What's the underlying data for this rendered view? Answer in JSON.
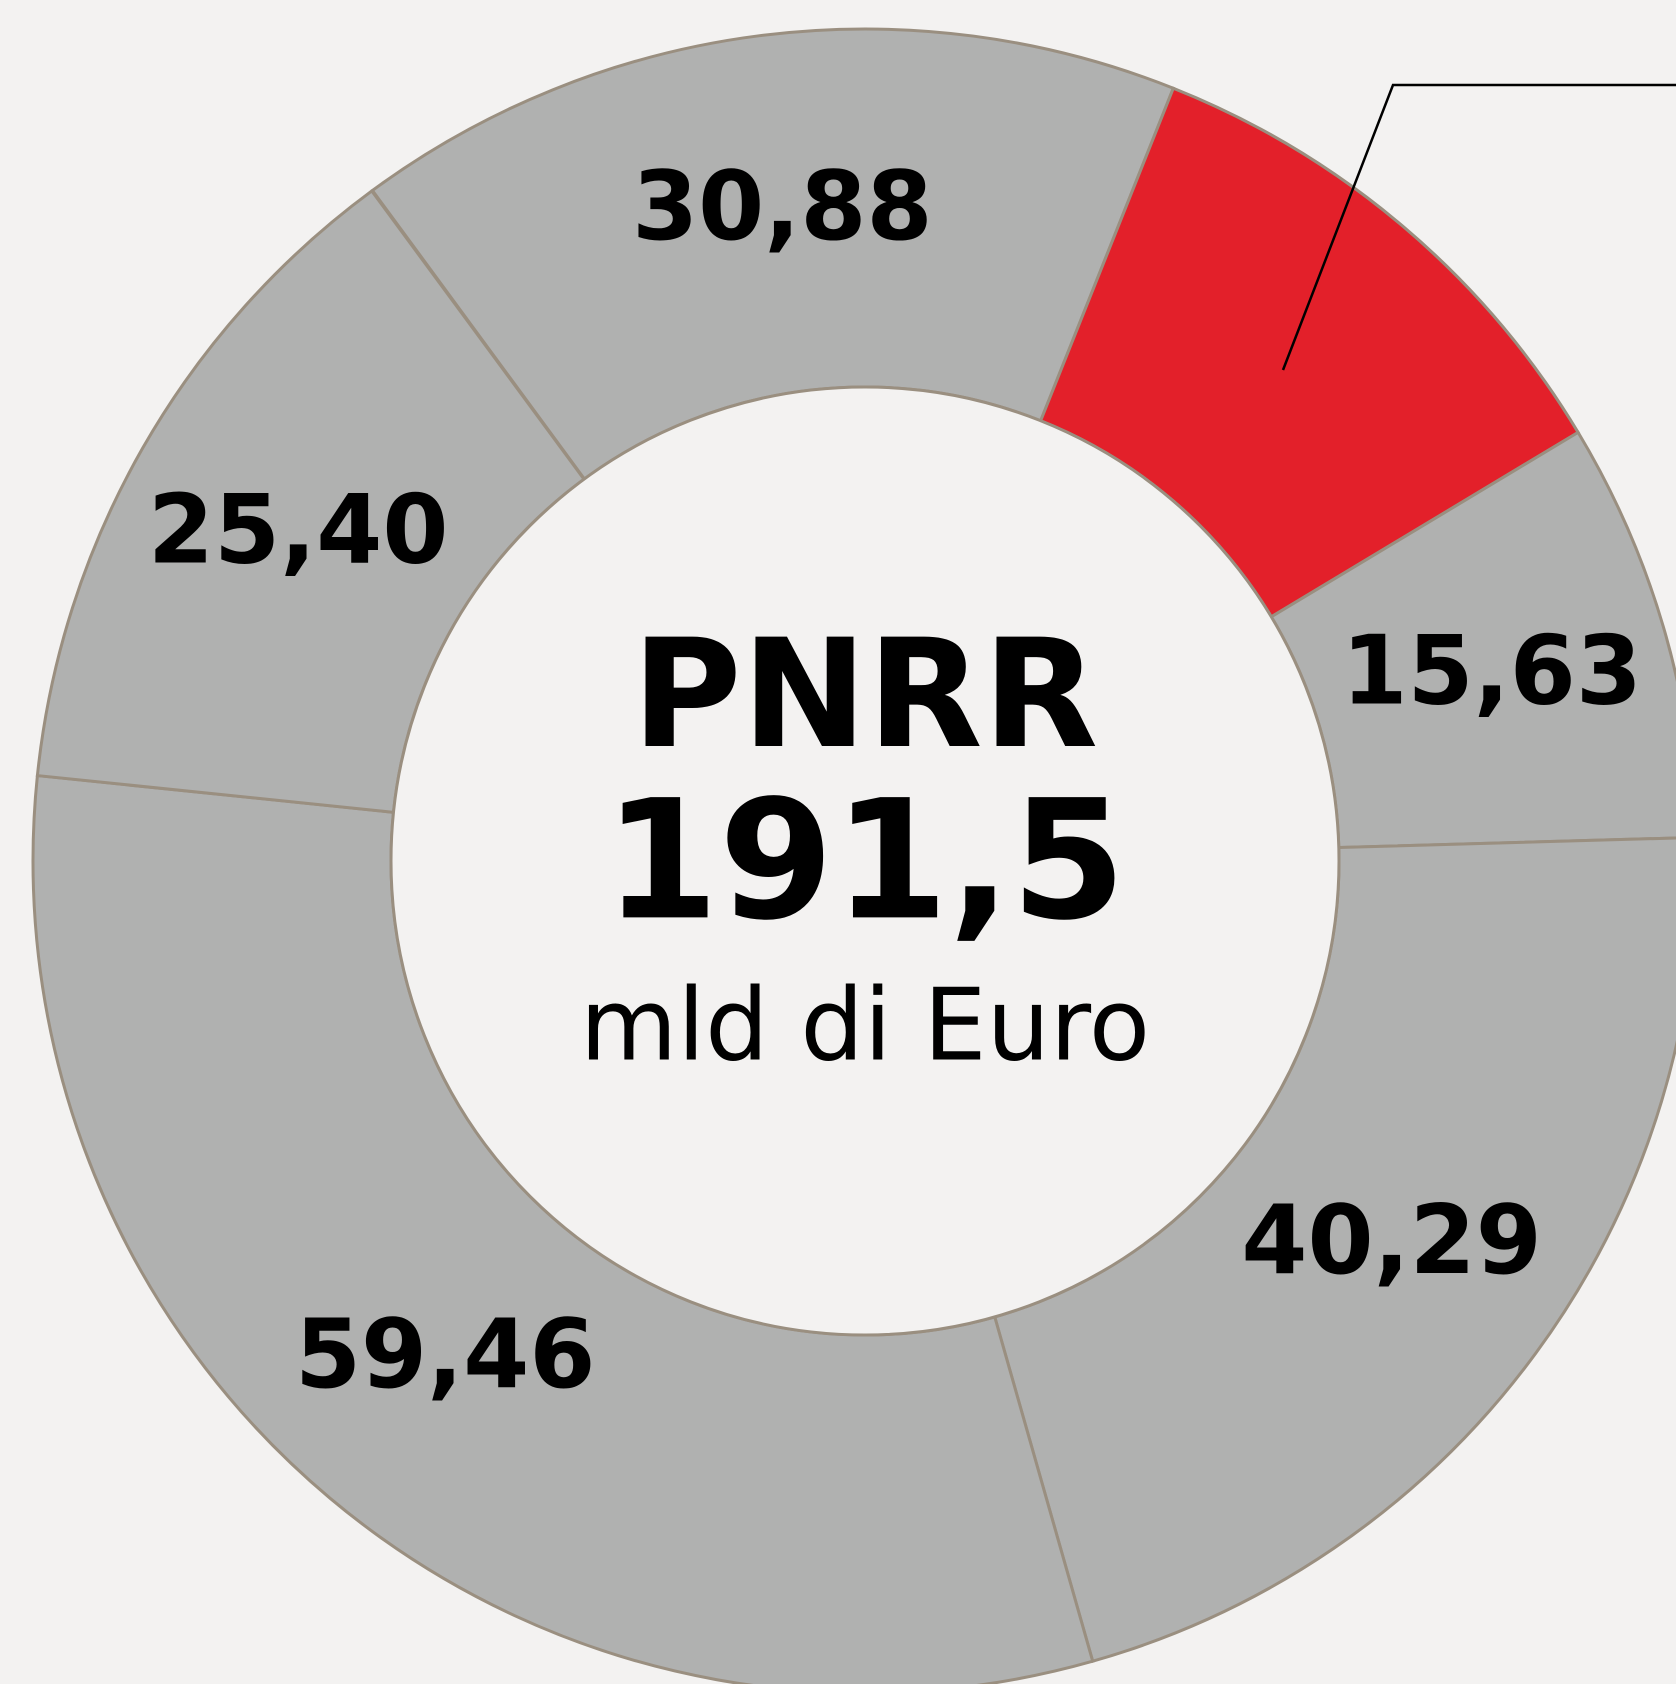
{
  "chart_data": {
    "type": "donut",
    "center_title": "PNRR",
    "total": 191.5,
    "total_label": "191,5",
    "unit": "mld di Euro",
    "values": [
      30.88,
      19.81,
      15.63,
      40.29,
      59.46,
      25.4
    ],
    "value_labels": [
      "30,88",
      null,
      "15,63",
      "40,29",
      "59,46",
      "25,40"
    ],
    "colors": [
      "#b0b1b0",
      "#e3202a",
      "#b0b1b0",
      "#b0b1b0",
      "#b0b1b0",
      "#b0b1b0"
    ]
  }
}
